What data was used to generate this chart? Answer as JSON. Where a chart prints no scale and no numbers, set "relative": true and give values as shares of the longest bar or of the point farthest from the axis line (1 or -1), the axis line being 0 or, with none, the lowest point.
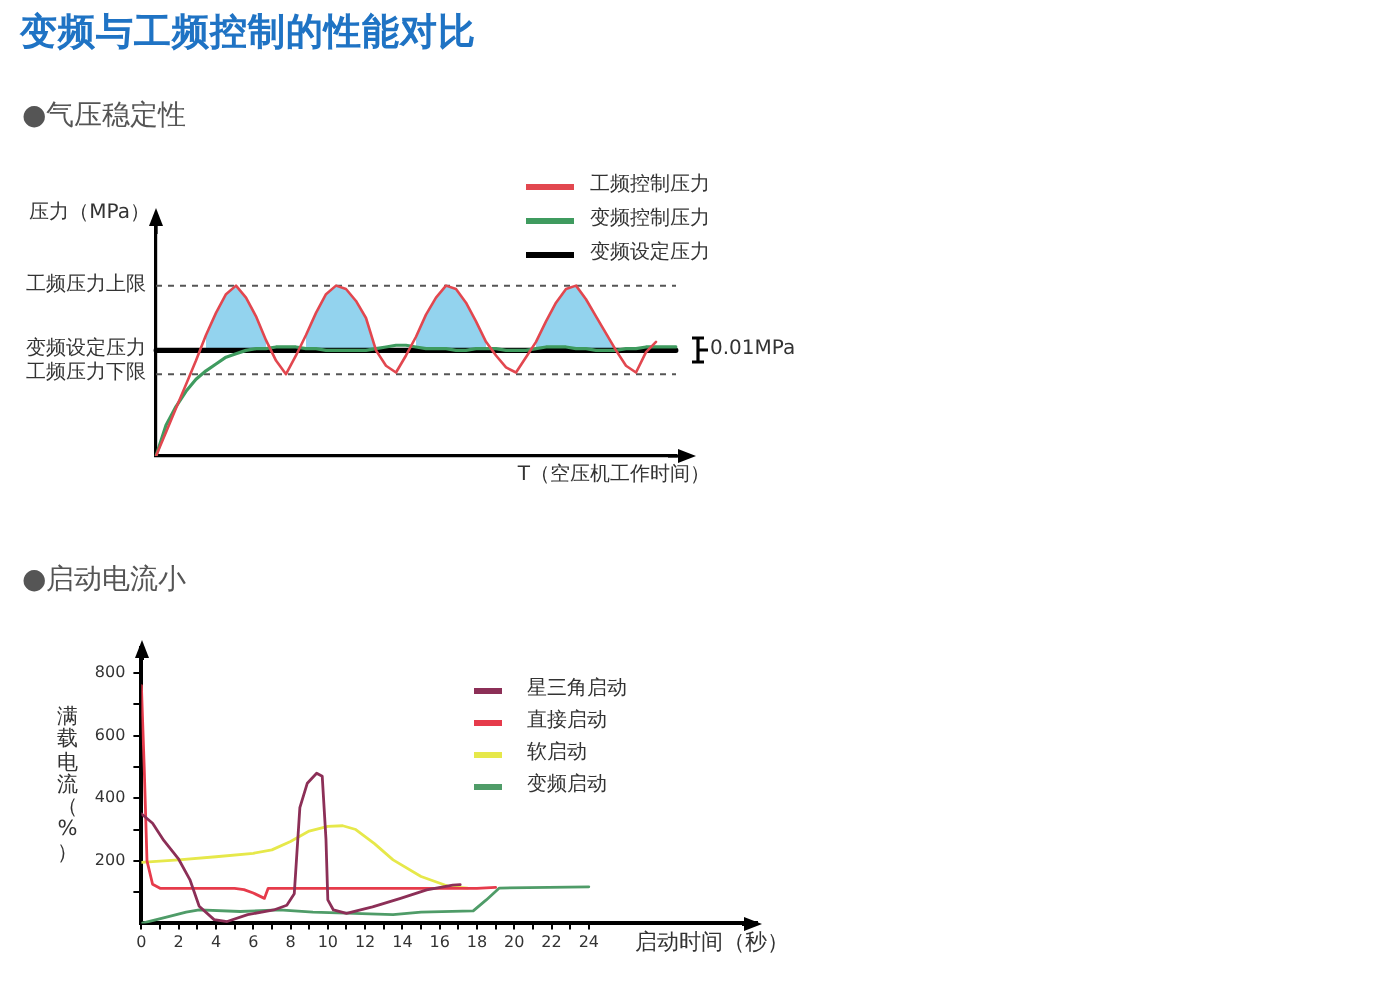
{
  "chart_data": [
    {
      "type": "line",
      "title": "变频与工频控制的性能对比",
      "subtitle": "●气压稳定性",
      "xlabel": "T（空压机工作时间）",
      "ylabel": "压力（MPa）",
      "relative": true,
      "legend": "top right",
      "categories": [
        null,
        null,
        null,
        null,
        null,
        null,
        null,
        null,
        null,
        null,
        null,
        null,
        null,
        null,
        null,
        null,
        null,
        null,
        null,
        null,
        null,
        null,
        null,
        null,
        null,
        null,
        null,
        null,
        null,
        null,
        null,
        null,
        null,
        null,
        null,
        null,
        null,
        null,
        null,
        null,
        null,
        null,
        null,
        null,
        null,
        null,
        null,
        null,
        null,
        null,
        null,
        null,
        null
      ],
      "series": [
        {
          "name": "工频控制压力",
          "color": "#e2474f",
          "values": [
            0,
            0.14,
            0.28,
            0.42,
            0.56,
            0.71,
            0.84,
            0.95,
            1,
            0.93,
            0.82,
            0.68,
            0.56,
            0.48,
            0.59,
            0.71,
            0.84,
            0.95,
            1,
            0.98,
            0.91,
            0.81,
            0.62,
            0.53,
            0.49,
            0.59,
            0.7,
            0.83,
            0.93,
            1,
            0.98,
            0.9,
            0.79,
            0.67,
            0.59,
            0.52,
            0.49,
            0.58,
            0.67,
            0.79,
            0.9,
            0.98,
            1,
            0.92,
            0.82,
            0.72,
            0.62,
            0.53,
            0.49,
            0.61,
            0.67,
            null,
            null
          ],
          "lower": [
            null,
            null,
            null,
            null,
            null,
            0.62,
            0.62,
            0.62,
            0.62,
            0.62,
            0.62,
            0.62,
            null,
            null,
            null,
            0.62,
            0.62,
            0.62,
            0.62,
            0.62,
            0.62,
            0.62,
            0.62,
            null,
            null,
            null,
            0.62,
            0.62,
            0.62,
            0.62,
            0.62,
            0.62,
            0.62,
            0.62,
            null,
            null,
            null,
            null,
            0.62,
            0.62,
            0.62,
            0.62,
            0.62,
            0.62,
            0.62,
            0.62,
            0.62,
            null,
            null,
            null,
            null,
            null,
            null
          ],
          "upper": [
            null,
            null,
            null,
            null,
            null,
            0.71,
            0.84,
            0.95,
            1,
            0.93,
            0.82,
            0.68,
            null,
            null,
            null,
            0.71,
            0.84,
            0.95,
            1,
            0.98,
            0.91,
            0.81,
            0.62,
            null,
            null,
            null,
            0.7,
            0.83,
            0.93,
            1,
            0.98,
            0.9,
            0.79,
            0.67,
            null,
            null,
            null,
            null,
            0.67,
            0.79,
            0.9,
            0.98,
            1,
            0.92,
            0.82,
            0.72,
            0.62,
            null,
            null,
            null,
            null,
            null,
            null
          ]
        },
        {
          "name": "变频控制压力",
          "color": "#3f9b5f",
          "values": [
            0,
            0.18,
            0.29,
            0.38,
            0.45,
            0.5,
            0.54,
            0.58,
            0.6,
            0.62,
            0.63,
            0.63,
            0.64,
            0.64,
            0.64,
            0.63,
            0.63,
            0.62,
            0.62,
            0.62,
            0.62,
            0.62,
            0.63,
            0.64,
            0.65,
            0.65,
            0.64,
            0.63,
            0.63,
            0.63,
            0.62,
            0.62,
            0.63,
            0.63,
            0.63,
            0.62,
            0.62,
            0.62,
            0.63,
            0.64,
            0.64,
            0.64,
            0.63,
            0.63,
            0.62,
            0.62,
            0.62,
            0.63,
            0.63,
            0.64,
            0.64,
            0.64,
            0.64
          ]
        },
        {
          "name": "变频设定压力",
          "color": "#000000",
          "values": [
            0.62,
            0.62,
            0.62,
            0.62,
            0.62,
            0.62,
            0.62,
            0.62,
            0.62,
            0.62,
            0.62,
            0.62,
            0.62,
            0.62,
            0.62,
            0.62,
            0.62,
            0.62,
            0.62,
            0.62,
            0.62,
            0.62,
            0.62,
            0.62,
            0.62,
            0.62,
            0.62,
            0.62,
            0.62,
            0.62,
            0.62,
            0.62,
            0.62,
            0.62,
            0.62,
            0.62,
            0.62,
            0.62,
            0.62,
            0.62,
            0.62,
            0.62,
            0.62,
            0.62,
            0.62,
            0.62,
            0.62,
            0.62,
            0.62,
            0.62,
            0.62,
            0.62,
            0.62
          ]
        }
      ],
      "ref_lines": [
        {
          "axis": "y",
          "value": 1,
          "label": "工频压力上限",
          "color": "#555555",
          "line_style": "dashed"
        },
        {
          "axis": "y",
          "value": 0.48,
          "label": "工频压力下限",
          "color": "#555555",
          "line_style": "dashed"
        }
      ],
      "annotations": [
        "变频设定压力",
        "0.01MPa"
      ]
    },
    {
      "type": "line",
      "title": "●启动电流小",
      "xlabel": "启动时间（秒）",
      "ylabel": "满载电流（%）",
      "legend": "top right",
      "xlim": [
        0,
        33
      ],
      "xticks": [
        0,
        {
          "value": 1,
          "label": null
        },
        2,
        {
          "value": 3,
          "label": null
        },
        4,
        {
          "value": 5,
          "label": null
        },
        6,
        {
          "value": 7,
          "label": null
        },
        8,
        {
          "value": 9,
          "label": null
        },
        10,
        {
          "value": 11,
          "label": null
        },
        12,
        {
          "value": 13,
          "label": null
        },
        14,
        {
          "value": 15,
          "label": null
        },
        16,
        {
          "value": 17,
          "label": null
        },
        18,
        {
          "value": 19,
          "label": null
        },
        20,
        {
          "value": 21,
          "label": null
        },
        22,
        {
          "value": 23,
          "label": null
        },
        24
      ],
      "ylim": [
        0,
        880
      ],
      "yticks": [
        {
          "value": 100,
          "label": null
        },
        200,
        {
          "value": 300,
          "label": null
        },
        400,
        {
          "value": 500,
          "label": null
        },
        600,
        {
          "value": 700,
          "label": null
        },
        800
      ],
      "series": [
        {
          "name": "星三角启动",
          "color": "#8c2f57",
          "x": [
            0,
            0.6,
            1.2,
            2,
            2.6,
            3.1,
            3.9,
            4.6,
            5.7,
            7.1,
            7.8,
            8.2,
            8.5,
            8.9,
            9.4,
            9.7,
            9.9,
            10,
            10.3,
            11,
            12.4,
            13.9,
            15.3,
            16.7,
            17.1
          ],
          "values": [
            350,
            320,
            265,
            205,
            140,
            55,
            12,
            6,
            28,
            43,
            58,
            95,
            370,
            448,
            480,
            470,
            270,
            75,
            43,
            32,
            53,
            80,
            107,
            122,
            124
          ]
        },
        {
          "name": "直接启动",
          "color": "#e63b4b",
          "x": [
            0,
            0.15,
            0.3,
            0.6,
            1,
            3,
            5,
            5.5,
            6,
            6.6,
            6.8,
            10,
            14,
            18,
            19
          ],
          "values": [
            760,
            500,
            200,
            125,
            112,
            112,
            112,
            108,
            97,
            80,
            112,
            112,
            112,
            112,
            115
          ]
        },
        {
          "name": "软启动",
          "color": "#e6e84a",
          "x": [
            0,
            2,
            4,
            6,
            7,
            8,
            9,
            10,
            10.8,
            11.5,
            12.5,
            13.5,
            15,
            16.5,
            17.5
          ],
          "values": [
            195,
            203,
            213,
            224,
            235,
            262,
            295,
            310,
            312,
            300,
            255,
            203,
            150,
            118,
            113
          ]
        },
        {
          "name": "变频启动",
          "color": "#4f9c68",
          "x": [
            0,
            1.4,
            2.4,
            3.1,
            5.3,
            7.4,
            9.2,
            11.4,
            13.5,
            15,
            17.8,
            18.5,
            19.2,
            24
          ],
          "values": [
            0,
            21,
            36,
            43,
            38,
            43,
            36,
            32,
            28,
            36,
            40,
            75,
            113,
            117
          ]
        }
      ]
    }
  ]
}
